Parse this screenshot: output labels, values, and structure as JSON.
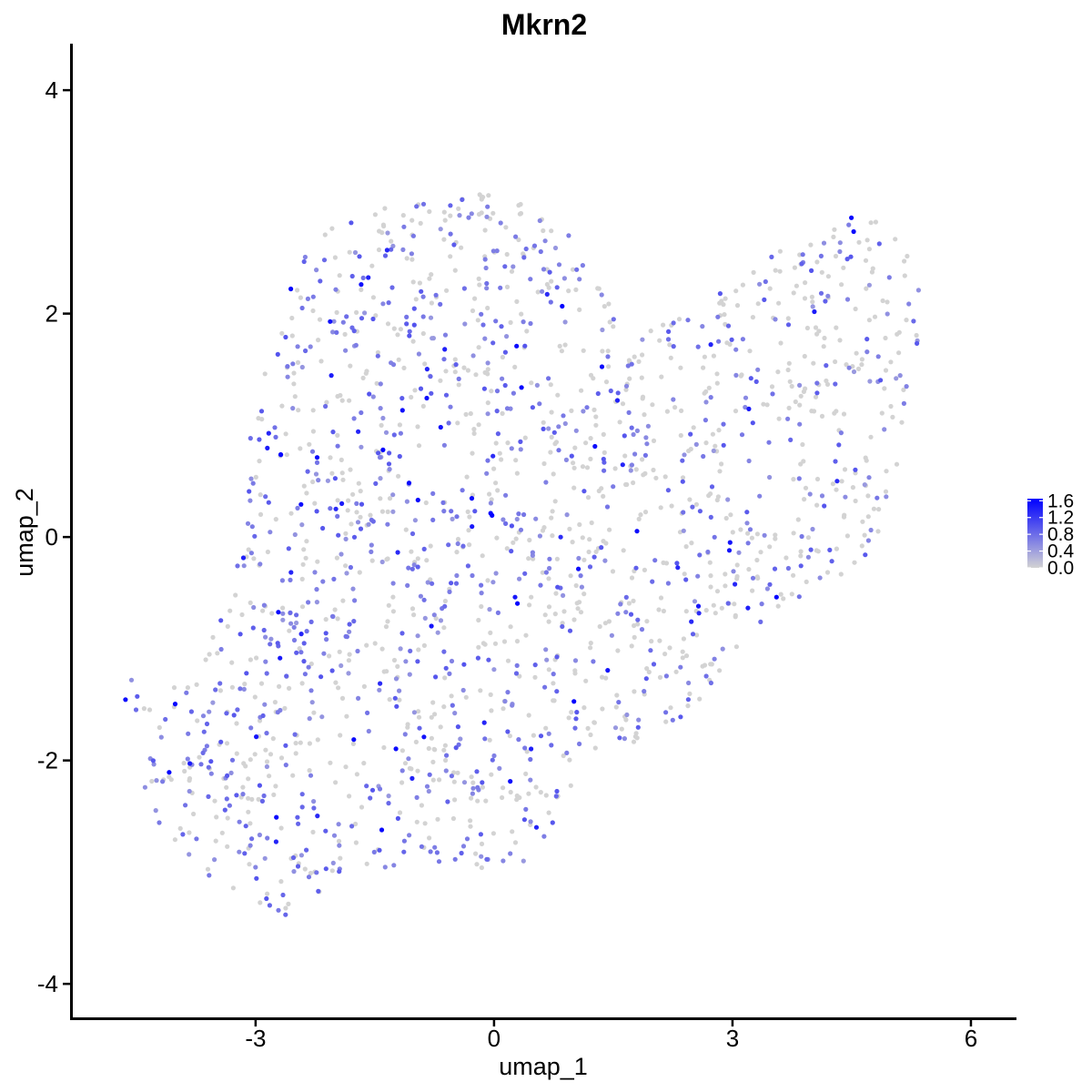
{
  "chart_data": {
    "type": "scatter",
    "title": "Mkrn2",
    "xlabel": "umap_1",
    "ylabel": "umap_2",
    "xlim": [
      -5.3,
      6.55
    ],
    "ylim": [
      -4.3,
      4.4
    ],
    "x_ticks": [
      -3,
      0,
      3,
      6
    ],
    "y_ticks": [
      -4,
      -2,
      0,
      2,
      4
    ],
    "x_tick_labels": [
      "-3",
      "0",
      "3",
      "6"
    ],
    "y_tick_labels": [
      "-4",
      "-2",
      "0",
      "2",
      "4"
    ],
    "grid": false,
    "legend": {
      "placement": "right",
      "type": "colorbar",
      "range": [
        0.0,
        1.65
      ],
      "ticks": [
        1.6,
        1.2,
        0.8,
        0.4,
        0.0
      ],
      "tick_labels": [
        "1.6",
        "1.2",
        "0.8",
        "0.4",
        "0.0"
      ]
    },
    "colors": {
      "low": "#d3d3d3",
      "high": "#0000ff"
    },
    "n_points": 1900,
    "description": "UMAP embedding, cells colored by Mkrn2 expression; points reproduced as an approximate random sample of the visible cloud shape"
  }
}
